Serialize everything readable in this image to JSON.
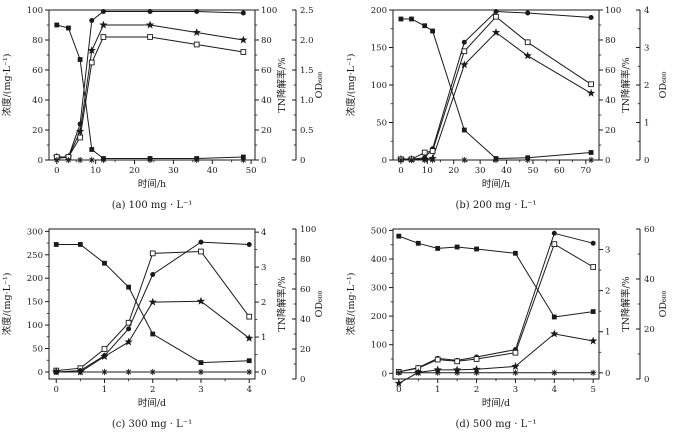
{
  "figure": {
    "background": "#ffffff",
    "line_color": "#1a1a1a",
    "description_visible_text_only": true
  },
  "chart_data": [
    {
      "id": "a",
      "type": "line",
      "caption": "(a) 100 mg · L⁻¹",
      "x_axis": {
        "label": "时间/h",
        "lim": [
          -2,
          51
        ],
        "ticks": [
          "0",
          "10",
          "20",
          "30",
          "40",
          "50"
        ],
        "minor_step": 5
      },
      "y_left": {
        "label": "浓度/(mg·L⁻¹)",
        "lim": [
          0,
          100
        ],
        "ticks": [
          "0",
          "20",
          "40",
          "60",
          "80",
          "100"
        ],
        "minor_step": 10
      },
      "y_right1": {
        "label": "TN降解率/%",
        "lim": [
          0,
          100
        ],
        "ticks": [
          "0",
          "20",
          "40",
          "60",
          "80",
          "100"
        ],
        "minor_step": 10
      },
      "y_right2": {
        "label": "OD₆₀₀",
        "lim": [
          0,
          2.5
        ],
        "ticks": [
          "0",
          "0.5",
          "1.0",
          "1.5",
          "2.0",
          "2.5"
        ],
        "minor_step": 0.25
      },
      "x": [
        0,
        3,
        6,
        9,
        12,
        24,
        36,
        48
      ],
      "values_scale": "left-axis-units",
      "series": [
        {
          "name": "declining-filled-square",
          "marker": "filled-square",
          "values": [
            90,
            88,
            67,
            7,
            1,
            1,
            1,
            2
          ]
        },
        {
          "name": "rising-filled-circle",
          "marker": "filled-circle",
          "values": [
            1,
            2,
            24,
            93,
            99,
            99,
            99,
            98
          ]
        },
        {
          "name": "rising-filled-star",
          "marker": "filled-star",
          "values": [
            2,
            2,
            19,
            73,
            90,
            90,
            85,
            80
          ]
        },
        {
          "name": "rising-open-square",
          "marker": "open-square",
          "values": [
            2,
            2,
            15,
            65,
            82,
            82,
            77,
            72
          ]
        },
        {
          "name": "baseline-asterisk",
          "marker": "asterisk",
          "values": [
            0,
            0,
            0,
            0,
            0,
            0,
            0,
            0
          ]
        }
      ]
    },
    {
      "id": "b",
      "type": "line",
      "caption": "(b) 200 mg · L⁻¹",
      "x_axis": {
        "label": "时间/h",
        "lim": [
          -3,
          75
        ],
        "ticks": [
          "0",
          "10",
          "20",
          "30",
          "40",
          "50",
          "60",
          "70"
        ],
        "minor_step": 5
      },
      "y_left": {
        "label": "浓度/(mg·L⁻¹)",
        "lim": [
          0,
          200
        ],
        "ticks": [
          "0",
          "50",
          "100",
          "150",
          "200"
        ],
        "minor_step": 25
      },
      "y_right1": {
        "label": "TN降解率/%",
        "lim": [
          0,
          100
        ],
        "ticks": [
          "0",
          "20",
          "40",
          "60",
          "80",
          "100"
        ],
        "minor_step": 10
      },
      "y_right2": {
        "label": "OD₆₀₀",
        "lim": [
          0,
          4
        ],
        "ticks": [
          "0",
          "1",
          "2",
          "3",
          "4"
        ],
        "minor_step": 0.5
      },
      "x": [
        0,
        4,
        9,
        12,
        24,
        36,
        48,
        72
      ],
      "values_scale": "left-axis-units",
      "series": [
        {
          "name": "declining-filled-square",
          "marker": "filled-square",
          "values": [
            188,
            188,
            179,
            172,
            40,
            2,
            3,
            10
          ]
        },
        {
          "name": "rising-filled-circle",
          "marker": "filled-circle",
          "values": [
            1,
            1,
            3,
            15,
            157,
            198,
            196,
            190
          ]
        },
        {
          "name": "rising-filled-star",
          "marker": "filled-star",
          "values": [
            1,
            1,
            1,
            2,
            127,
            170,
            139,
            89
          ]
        },
        {
          "name": "rising-open-square",
          "marker": "open-square",
          "values": [
            1,
            1,
            10,
            12,
            145,
            191,
            157,
            101
          ]
        },
        {
          "name": "baseline-asterisk",
          "marker": "asterisk",
          "values": [
            0,
            0,
            0,
            0,
            0,
            0,
            0,
            0
          ]
        }
      ]
    },
    {
      "id": "c",
      "type": "line",
      "caption": "(c) 300 mg · L⁻¹",
      "x_axis": {
        "label": "时间/d",
        "lim": [
          -0.15,
          4.12
        ],
        "ticks": [
          "0",
          "1",
          "2",
          "3",
          "4"
        ],
        "minor_step": 0.5
      },
      "y_left": {
        "label": "浓度/(mg·L⁻¹)",
        "lim": [
          -15,
          305
        ],
        "ticks": [
          "0",
          "50",
          "100",
          "150",
          "200",
          "250",
          "300"
        ],
        "minor_step": 25
      },
      "y_right1": {
        "label": "TN降解率/%",
        "lim": [
          -0.2,
          4.09
        ],
        "ticks": [
          "0",
          "1",
          "2",
          "3",
          "4"
        ],
        "minor_step": 0.5
      },
      "y_right2": {
        "label": "OD₆₀₀",
        "lim": [
          0,
          100
        ],
        "ticks": [
          "0",
          "20",
          "40",
          "60",
          "80",
          "100"
        ],
        "minor_step": 10
      },
      "x": [
        0,
        0.5,
        1,
        1.5,
        2,
        3,
        4
      ],
      "values_scale": "left-axis-units",
      "series": [
        {
          "name": "declining-filled-square",
          "marker": "filled-square",
          "values": [
            272,
            272,
            232,
            181,
            81,
            20,
            24
          ]
        },
        {
          "name": "rising-open-square",
          "marker": "open-square",
          "values": [
            3,
            8,
            49,
            105,
            253,
            257,
            118
          ]
        },
        {
          "name": "rising-filled-circle",
          "marker": "filled-circle",
          "values": [
            0,
            3,
            35,
            92,
            208,
            277,
            272
          ]
        },
        {
          "name": "rising-filled-star",
          "marker": "filled-star",
          "values": [
            0,
            0,
            33,
            64,
            149,
            151,
            72
          ]
        },
        {
          "name": "baseline-asterisk",
          "marker": "asterisk",
          "values": [
            0,
            0,
            0,
            0,
            0,
            0,
            0
          ]
        }
      ]
    },
    {
      "id": "d",
      "type": "line",
      "caption": "(d) 500 mg · L⁻¹",
      "x_axis": {
        "label": "时间/d",
        "lim": [
          -0.15,
          5.15
        ],
        "ticks": [
          "0",
          "1",
          "2",
          "3",
          "4",
          "5"
        ],
        "minor_step": 0.5
      },
      "y_left": {
        "label": "浓度/(mg·L⁻¹)",
        "lim": [
          -20,
          505
        ],
        "ticks": [
          "0",
          "100",
          "200",
          "300",
          "400",
          "500"
        ],
        "minor_step": 50
      },
      "y_right1": {
        "label": "TN降解率/%",
        "lim": [
          -0.15,
          3.5
        ],
        "ticks": [
          "0",
          "1",
          "2",
          "3"
        ],
        "minor_step": 0.5
      },
      "y_right2": {
        "label": "OD₆₀₀",
        "lim": [
          0,
          60
        ],
        "ticks": [
          "0",
          "20",
          "40",
          "60"
        ],
        "minor_step": 10
      },
      "x": [
        0,
        0.5,
        1,
        1.5,
        2,
        3,
        4,
        5
      ],
      "values_scale": "left-axis-units",
      "series": [
        {
          "name": "declining-filled-square",
          "marker": "filled-square",
          "values": [
            480,
            455,
            437,
            442,
            435,
            420,
            197,
            216
          ]
        },
        {
          "name": "rising-filled-circle",
          "marker": "filled-circle",
          "values": [
            5,
            20,
            52,
            45,
            57,
            83,
            490,
            455
          ]
        },
        {
          "name": "rising-open-square",
          "marker": "open-square",
          "values": [
            5,
            18,
            48,
            42,
            50,
            72,
            452,
            372
          ]
        },
        {
          "name": "rising-filled-star",
          "marker": "filled-star",
          "values": [
            -35,
            3,
            12,
            12,
            14,
            24,
            138,
            113
          ]
        },
        {
          "name": "baseline-asterisk",
          "marker": "asterisk",
          "values": [
            2,
            2,
            2,
            2,
            2,
            2,
            2,
            2
          ]
        }
      ]
    }
  ]
}
